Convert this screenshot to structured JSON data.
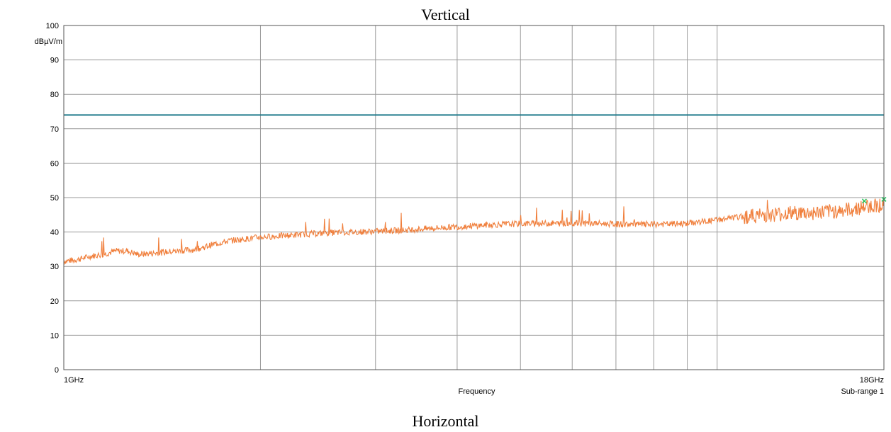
{
  "chart_data": {
    "type": "line",
    "title": "Vertical",
    "subtitle": "Horizontal",
    "xlabel": "Frequency",
    "ylabel": "dBµV/m",
    "x_unit": "GHz",
    "x_scale": "log",
    "xlim": [
      1,
      18
    ],
    "ylim": [
      0,
      100
    ],
    "yticks": [
      0,
      10,
      20,
      30,
      40,
      50,
      60,
      70,
      80,
      90,
      100
    ],
    "x_tick_labels": {
      "start": "1GHz",
      "end": "18GHz"
    },
    "range_label": "Sub-range 1",
    "x_gridlines": [
      1,
      2,
      3,
      4,
      5,
      6,
      7,
      8,
      9,
      10,
      18
    ],
    "grid": true,
    "limit_line": {
      "value": 74,
      "color": "#1f7a8c"
    },
    "series": [
      {
        "color": "#f07f3c",
        "x": [
          1.0,
          1.05,
          1.1,
          1.15,
          1.2,
          1.25,
          1.3,
          1.4,
          1.5,
          1.6,
          1.7,
          1.8,
          1.9,
          2.0,
          2.2,
          2.4,
          2.6,
          2.8,
          3.0,
          3.3,
          3.6,
          4.0,
          4.4,
          4.8,
          5.2,
          5.6,
          6.0,
          6.5,
          7.0,
          7.5,
          8.0,
          8.5,
          9.0,
          9.5,
          10.0,
          11.0,
          12.0,
          13.0,
          14.0,
          15.0,
          16.0,
          17.0,
          18.0
        ],
        "y": [
          31.5,
          32.0,
          33.0,
          33.5,
          34.5,
          34.5,
          33.5,
          34.0,
          34.5,
          35.0,
          36.5,
          37.5,
          38.0,
          38.5,
          39.0,
          39.5,
          39.8,
          40.0,
          40.2,
          40.5,
          41.0,
          41.5,
          42.0,
          42.3,
          42.5,
          42.5,
          42.5,
          42.5,
          42.3,
          42.2,
          42.2,
          42.3,
          42.5,
          43.0,
          43.5,
          44.5,
          45.0,
          45.5,
          45.5,
          46.0,
          46.5,
          47.5,
          48.0
        ]
      }
    ],
    "markers": [
      {
        "x": 16.8,
        "y": 49.0,
        "color": "#22c55e"
      },
      {
        "x": 18.0,
        "y": 49.5,
        "color": "#22c55e"
      }
    ]
  }
}
